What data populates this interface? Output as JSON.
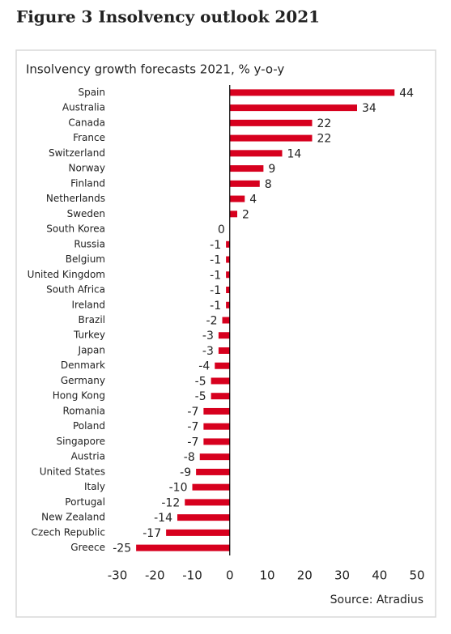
{
  "chart_data": {
    "type": "hbar",
    "title": "Figure 3 Insolvency outlook 2021",
    "subtitle": "Insolvency growth forecasts 2021, % y-o-y",
    "source": "Source: Atradius",
    "categories": [
      "Spain",
      "Australia",
      "Canada",
      "France",
      "Switzerland",
      "Norway",
      "Finland",
      "Netherlands",
      "Sweden",
      "South Korea",
      "Russia",
      "Belgium",
      "United Kingdom",
      "South Africa",
      "Ireland",
      "Brazil",
      "Turkey",
      "Japan",
      "Denmark",
      "Germany",
      "Hong Kong",
      "Romania",
      "Poland",
      "Singapore",
      "Austria",
      "United States",
      "Italy",
      "Portugal",
      "New Zealand",
      "Czech Republic",
      "Greece"
    ],
    "values": [
      44,
      34,
      22,
      22,
      14,
      9,
      8,
      4,
      2,
      0,
      -1,
      -1,
      -1,
      -1,
      -1,
      -2,
      -3,
      -3,
      -4,
      -5,
      -5,
      -7,
      -7,
      -7,
      -8,
      -9,
      -10,
      -12,
      -14,
      -17,
      -25
    ],
    "color": "#d7001e",
    "xlim": [
      -30,
      50
    ],
    "xticks": [
      -30,
      -20,
      -10,
      0,
      10,
      20,
      30,
      40,
      50
    ]
  }
}
